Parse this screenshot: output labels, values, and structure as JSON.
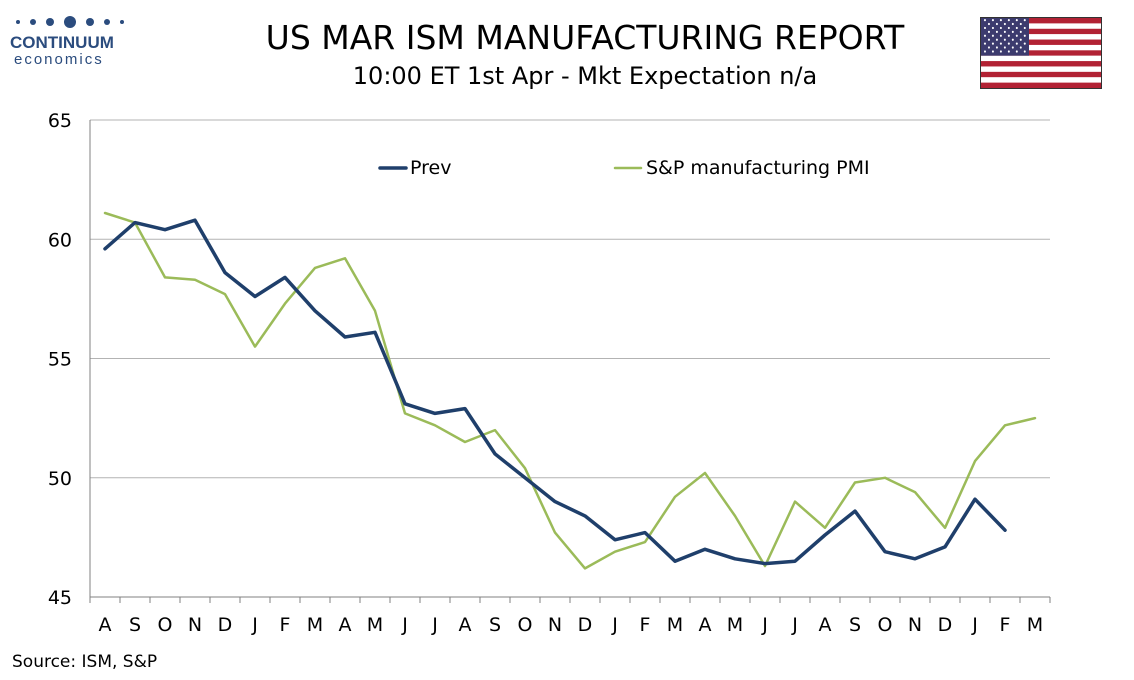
{
  "logo": {
    "name": "CONTINUUM",
    "sub": "economics"
  },
  "title": "US MAR ISM MANUFACTURING REPORT",
  "subtitle": "10:00 ET 1st Apr - Mkt Expectation n/a",
  "source": "Source: ISM, S&P",
  "colors": {
    "prev": "#1f3f6b",
    "pmi": "#9bbb59",
    "grid": "#b3b3b3",
    "axis": "#808080",
    "flag_red": "#b22234",
    "flag_blue": "#3c3b6e"
  },
  "chart_data": {
    "type": "line",
    "categories": [
      "A",
      "S",
      "O",
      "N",
      "D",
      "J",
      "F",
      "M",
      "A",
      "M",
      "J",
      "J",
      "A",
      "S",
      "O",
      "N",
      "D",
      "J",
      "F",
      "M",
      "A",
      "M",
      "J",
      "J",
      "A",
      "S",
      "O",
      "N",
      "D",
      "J",
      "F",
      "M"
    ],
    "series": [
      {
        "name": "Prev",
        "values": [
          59.6,
          60.7,
          60.4,
          60.8,
          58.6,
          57.6,
          58.4,
          57.0,
          55.9,
          56.1,
          53.1,
          52.7,
          52.9,
          51.0,
          50.0,
          49.0,
          48.4,
          47.4,
          47.7,
          46.5,
          47.0,
          46.6,
          46.4,
          46.5,
          47.6,
          48.6,
          46.9,
          46.6,
          47.1,
          49.1,
          47.8,
          null
        ]
      },
      {
        "name": "S&P manufacturing PMI",
        "values": [
          61.1,
          60.7,
          58.4,
          58.3,
          57.7,
          55.5,
          57.3,
          58.8,
          59.2,
          57.0,
          52.7,
          52.2,
          51.5,
          52.0,
          50.4,
          47.7,
          46.2,
          46.9,
          47.3,
          49.2,
          50.2,
          48.4,
          46.3,
          49.0,
          47.9,
          49.8,
          50.0,
          49.4,
          47.9,
          50.7,
          52.2,
          52.5
        ]
      }
    ],
    "ylim": [
      45,
      65
    ],
    "yticks": [
      45,
      50,
      55,
      60,
      65
    ],
    "grid": true,
    "legend": "top-center"
  }
}
